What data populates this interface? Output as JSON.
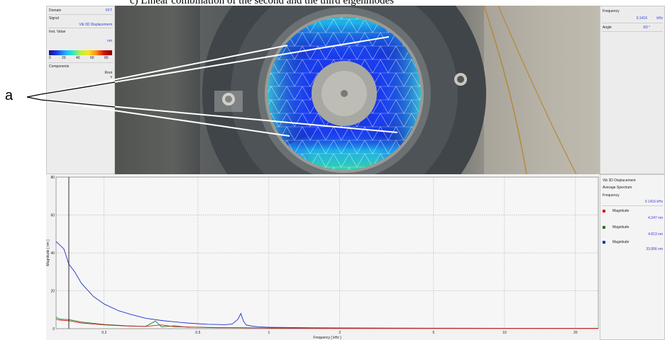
{
  "figure_title": "c) Linear combination of the second and the third eigenmodes",
  "annotation_label": "a",
  "left_panel": {
    "domain_label": "Domain",
    "domain_value": "FFT",
    "signal_label": "Signal",
    "signal_value": "Vib 3D Displacement",
    "inst_value_label": "Inst. Value",
    "unit": "nm",
    "colorbar_ticks": [
      "0",
      "20",
      "40",
      "60",
      "80"
    ],
    "components_label": "Components",
    "components_value": "Root",
    "components_sub": "v"
  },
  "right_top": {
    "frequency_label": "Frequency",
    "frequency_value": "0.1416",
    "frequency_unit": "kHz",
    "angle_label": "Angle",
    "angle_value": "-83 °"
  },
  "right_bottom": {
    "signal": "Vib 3D Displacement",
    "spectrum": "Average Spectrum",
    "frequency_label": "Frequency",
    "frequency_value": "0.1416 kHz",
    "legend": [
      {
        "label": "Magnitude",
        "value": "4.247 nm",
        "color": "#cc2222"
      },
      {
        "label": "Magnitude",
        "value": "4.813 nm",
        "color": "#1f7a1f"
      },
      {
        "label": "Magnitude",
        "value": "33.856 nm",
        "color": "#2233cc"
      }
    ]
  },
  "chart_data": {
    "type": "line",
    "xlabel": "Frequency [ kHz ]",
    "ylabel": "Magnitude [ nm ]",
    "x_ticks": [
      "0.2",
      "0.5",
      "1",
      "2",
      "5",
      "10",
      "20"
    ],
    "y_ticks": [
      "0",
      "20",
      "40",
      "60",
      "80"
    ],
    "x_scale": "log",
    "xlim": [
      0.125,
      25
    ],
    "ylim": [
      0,
      80
    ],
    "cursor_x": 0.1416,
    "grid": true,
    "series": [
      {
        "color": "#2233cc",
        "x": [
          0.125,
          0.13,
          0.135,
          0.1416,
          0.15,
          0.16,
          0.18,
          0.2,
          0.23,
          0.26,
          0.3,
          0.35,
          0.4,
          0.45,
          0.5,
          0.55,
          0.6,
          0.65,
          0.7,
          0.74,
          0.76,
          0.78,
          0.8,
          0.85,
          0.9,
          1,
          1.5,
          2,
          3,
          5,
          10,
          20,
          25
        ],
        "y": [
          46,
          44,
          42,
          34,
          30,
          24,
          17,
          13,
          9.5,
          7.5,
          5.5,
          4.3,
          3.6,
          3,
          2.6,
          2.3,
          2.2,
          2.1,
          2.5,
          5,
          8,
          4,
          2,
          1.3,
          1,
          0.7,
          0.5,
          0.4,
          0.3,
          0.25,
          0.2,
          0.2,
          0.2
        ]
      },
      {
        "color": "#1f7a1f",
        "x": [
          0.125,
          0.13,
          0.1416,
          0.16,
          0.2,
          0.25,
          0.3,
          0.33,
          0.35,
          0.4,
          0.45,
          0.5,
          0.6,
          0.75,
          0.9,
          1,
          2,
          5,
          10,
          25
        ],
        "y": [
          6,
          5,
          4.8,
          3.5,
          2.2,
          1.5,
          1.2,
          4,
          1,
          1.5,
          0.8,
          0.8,
          0.6,
          0.5,
          0.4,
          0.3,
          0.3,
          0.2,
          0.2,
          0.2
        ]
      },
      {
        "color": "#cc2222",
        "x": [
          0.125,
          0.13,
          0.1416,
          0.16,
          0.2,
          0.25,
          0.3,
          0.35,
          0.4,
          0.45,
          0.5,
          0.6,
          0.75,
          0.9,
          1,
          2,
          5,
          10,
          25
        ],
        "y": [
          5,
          4.5,
          4.2,
          3,
          2,
          1.4,
          1.2,
          2,
          1,
          0.9,
          0.7,
          0.5,
          0.5,
          0.4,
          0.3,
          0.2,
          0.2,
          0.2,
          0.2
        ]
      }
    ]
  }
}
